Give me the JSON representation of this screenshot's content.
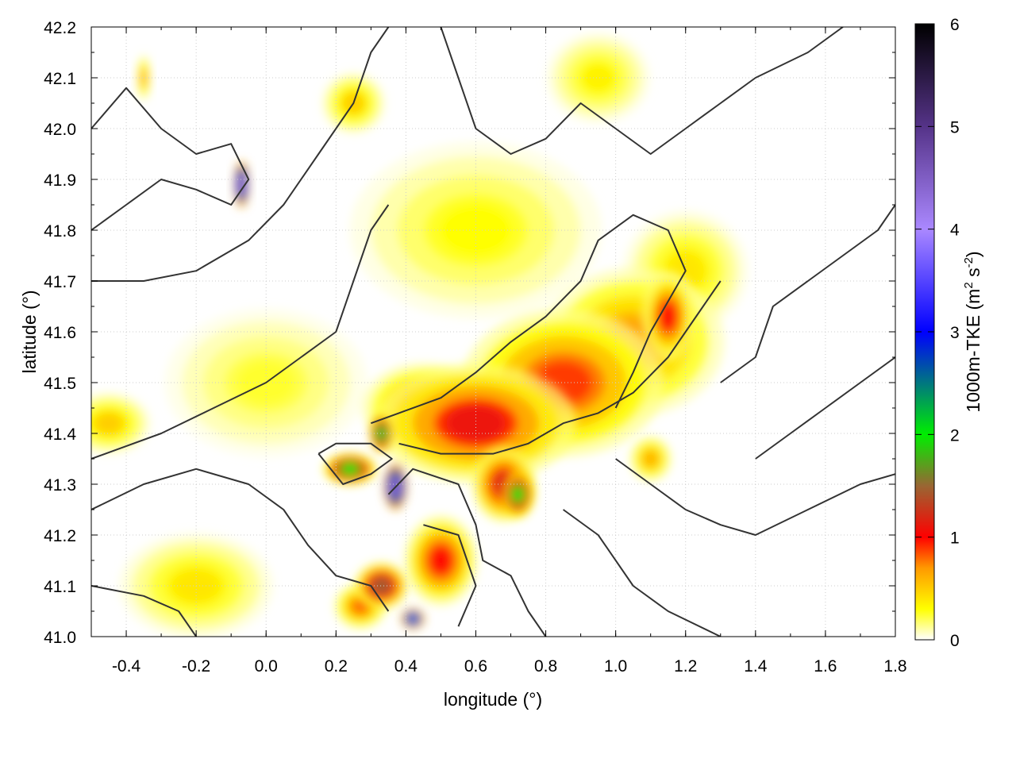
{
  "chart_data": {
    "type": "heatmap",
    "title": "",
    "xlabel": "longitude (°)",
    "ylabel": "latitude (°)",
    "xlim": [
      -0.5,
      1.8
    ],
    "ylim": [
      41.0,
      42.2
    ],
    "xticks": [
      -0.4,
      -0.2,
      0.0,
      0.2,
      0.4,
      0.6,
      0.8,
      1.0,
      1.2,
      1.4,
      1.6,
      1.8
    ],
    "xtick_labels": [
      "-0.4",
      "-0.2",
      "0.0",
      "0.2",
      "0.4",
      "0.6",
      "0.8",
      "1.0",
      "1.2",
      "1.4",
      "1.6",
      "1.8"
    ],
    "yticks": [
      41.0,
      41.1,
      41.2,
      41.3,
      41.4,
      41.5,
      41.6,
      41.7,
      41.8,
      41.9,
      42.0,
      42.1,
      42.2
    ],
    "ytick_labels": [
      "41.0",
      "41.1",
      "41.2",
      "41.3",
      "41.4",
      "41.5",
      "41.6",
      "41.7",
      "41.8",
      "41.9",
      "42.0",
      "42.1",
      "42.2"
    ],
    "grid": true,
    "colorbar": {
      "label": "1000m-TKE (m",
      "label_sup1": "2",
      "label_mid": " s",
      "label_sup2": "-2",
      "label_end": ")",
      "range": [
        0,
        6
      ],
      "ticks": [
        0,
        1,
        2,
        3,
        4,
        5,
        6
      ],
      "tick_labels": [
        "0",
        "1",
        "2",
        "3",
        "4",
        "5",
        "6"
      ],
      "stops": [
        {
          "v": 0,
          "color": "#ffffff"
        },
        {
          "v": 0.3,
          "color": "#ffff00"
        },
        {
          "v": 0.7,
          "color": "#ff9900"
        },
        {
          "v": 1.0,
          "color": "#ff0000"
        },
        {
          "v": 1.5,
          "color": "#996633"
        },
        {
          "v": 2.0,
          "color": "#00ee00"
        },
        {
          "v": 3.0,
          "color": "#0000ff"
        },
        {
          "v": 4.0,
          "color": "#aa88ff"
        },
        {
          "v": 5.0,
          "color": "#553388"
        },
        {
          "v": 6.0,
          "color": "#000000"
        }
      ]
    },
    "hotspots": [
      {
        "lon": 0.6,
        "lat": 41.42,
        "tke": 1.1,
        "rx": 0.2,
        "ry": 0.08
      },
      {
        "lon": 0.85,
        "lat": 41.5,
        "tke": 0.9,
        "rx": 0.2,
        "ry": 0.1
      },
      {
        "lon": 1.05,
        "lat": 41.58,
        "tke": 0.7,
        "rx": 0.18,
        "ry": 0.1
      },
      {
        "lon": 1.15,
        "lat": 41.63,
        "tke": 1.0,
        "rx": 0.05,
        "ry": 0.06
      },
      {
        "lon": 1.2,
        "lat": 41.72,
        "tke": 0.4,
        "rx": 0.12,
        "ry": 0.08
      },
      {
        "lon": 0.45,
        "lat": 41.45,
        "tke": 0.8,
        "rx": 0.12,
        "ry": 0.06
      },
      {
        "lon": 0.33,
        "lat": 41.4,
        "tke": 2.2,
        "rx": 0.02,
        "ry": 0.025
      },
      {
        "lon": 0.24,
        "lat": 41.33,
        "tke": 2.0,
        "rx": 0.05,
        "ry": 0.02
      },
      {
        "lon": 0.37,
        "lat": 41.295,
        "tke": 4.5,
        "rx": 0.02,
        "ry": 0.03
      },
      {
        "lon": 0.72,
        "lat": 41.28,
        "tke": 2.0,
        "rx": 0.03,
        "ry": 0.03
      },
      {
        "lon": 0.68,
        "lat": 41.3,
        "tke": 1.2,
        "rx": 0.06,
        "ry": 0.05
      },
      {
        "lon": 0.5,
        "lat": 41.15,
        "tke": 1.0,
        "rx": 0.07,
        "ry": 0.06
      },
      {
        "lon": 0.33,
        "lat": 41.1,
        "tke": 1.5,
        "rx": 0.05,
        "ry": 0.03
      },
      {
        "lon": 0.42,
        "lat": 41.035,
        "tke": 3.5,
        "rx": 0.02,
        "ry": 0.012
      },
      {
        "lon": 0.27,
        "lat": 41.06,
        "tke": 0.8,
        "rx": 0.05,
        "ry": 0.03
      },
      {
        "lon": -0.07,
        "lat": 41.89,
        "tke": 4.5,
        "rx": 0.012,
        "ry": 0.03
      },
      {
        "lon": -0.45,
        "lat": 41.42,
        "tke": 0.5,
        "rx": 0.08,
        "ry": 0.04
      },
      {
        "lon": -0.2,
        "lat": 41.1,
        "tke": 0.4,
        "rx": 0.15,
        "ry": 0.07
      },
      {
        "lon": 0.25,
        "lat": 42.05,
        "tke": 0.5,
        "rx": 0.06,
        "ry": 0.04
      },
      {
        "lon": 0.95,
        "lat": 42.1,
        "tke": 0.35,
        "rx": 0.1,
        "ry": 0.06
      },
      {
        "lon": 0.6,
        "lat": 41.8,
        "tke": 0.3,
        "rx": 0.25,
        "ry": 0.12
      },
      {
        "lon": 0.0,
        "lat": 41.5,
        "tke": 0.25,
        "rx": 0.2,
        "ry": 0.1
      },
      {
        "lon": -0.35,
        "lat": 42.1,
        "tke": 0.6,
        "rx": 0.01,
        "ry": 0.03
      },
      {
        "lon": 1.1,
        "lat": 41.35,
        "tke": 0.6,
        "rx": 0.04,
        "ry": 0.03
      }
    ],
    "contours": [
      [
        [
          0.3,
          41.42
        ],
        [
          0.38,
          41.44
        ],
        [
          0.5,
          41.47
        ],
        [
          0.6,
          41.52
        ],
        [
          0.7,
          41.58
        ],
        [
          0.8,
          41.63
        ],
        [
          0.9,
          41.7
        ],
        [
          0.95,
          41.78
        ],
        [
          1.05,
          41.83
        ],
        [
          1.15,
          41.8
        ],
        [
          1.2,
          41.72
        ],
        [
          1.1,
          41.6
        ],
        [
          1.05,
          41.52
        ],
        [
          1.0,
          41.45
        ]
      ],
      [
        [
          0.38,
          41.38
        ],
        [
          0.5,
          41.36
        ],
        [
          0.65,
          41.36
        ],
        [
          0.75,
          41.38
        ],
        [
          0.85,
          41.42
        ],
        [
          0.95,
          41.44
        ],
        [
          1.05,
          41.48
        ],
        [
          1.15,
          41.55
        ],
        [
          1.25,
          41.65
        ],
        [
          1.3,
          41.7
        ]
      ],
      [
        [
          0.15,
          41.36
        ],
        [
          0.22,
          41.3
        ],
        [
          0.3,
          41.32
        ],
        [
          0.36,
          41.35
        ],
        [
          0.3,
          41.38
        ],
        [
          0.2,
          41.38
        ],
        [
          0.15,
          41.36
        ]
      ],
      [
        [
          0.35,
          41.28
        ],
        [
          0.42,
          41.33
        ],
        [
          0.55,
          41.3
        ],
        [
          0.6,
          41.22
        ],
        [
          0.62,
          41.15
        ],
        [
          0.7,
          41.12
        ],
        [
          0.75,
          41.05
        ],
        [
          0.8,
          41.0
        ]
      ],
      [
        [
          0.45,
          41.22
        ],
        [
          0.55,
          41.2
        ],
        [
          0.6,
          41.1
        ],
        [
          0.55,
          41.02
        ]
      ],
      [
        [
          -0.5,
          41.35
        ],
        [
          -0.3,
          41.4
        ],
        [
          -0.15,
          41.45
        ],
        [
          0.0,
          41.5
        ],
        [
          0.1,
          41.55
        ],
        [
          0.2,
          41.6
        ],
        [
          0.25,
          41.7
        ],
        [
          0.3,
          41.8
        ],
        [
          0.35,
          41.85
        ]
      ],
      [
        [
          -0.5,
          41.25
        ],
        [
          -0.35,
          41.3
        ],
        [
          -0.2,
          41.33
        ],
        [
          -0.05,
          41.3
        ],
        [
          0.05,
          41.25
        ],
        [
          0.12,
          41.18
        ],
        [
          0.2,
          41.12
        ],
        [
          0.3,
          41.1
        ],
        [
          0.35,
          41.05
        ]
      ],
      [
        [
          -0.5,
          41.1
        ],
        [
          -0.35,
          41.08
        ],
        [
          -0.25,
          41.05
        ],
        [
          -0.2,
          41.0
        ]
      ],
      [
        [
          -0.5,
          42.0
        ],
        [
          -0.4,
          42.08
        ],
        [
          -0.3,
          42.0
        ],
        [
          -0.2,
          41.95
        ],
        [
          -0.1,
          41.97
        ],
        [
          -0.05,
          41.9
        ],
        [
          -0.1,
          41.85
        ],
        [
          -0.2,
          41.88
        ],
        [
          -0.3,
          41.9
        ],
        [
          -0.4,
          41.85
        ],
        [
          -0.5,
          41.8
        ]
      ],
      [
        [
          -0.5,
          41.7
        ],
        [
          -0.35,
          41.7
        ],
        [
          -0.2,
          41.72
        ],
        [
          -0.05,
          41.78
        ],
        [
          0.05,
          41.85
        ],
        [
          0.15,
          41.95
        ],
        [
          0.25,
          42.05
        ],
        [
          0.3,
          42.15
        ],
        [
          0.35,
          42.2
        ]
      ],
      [
        [
          0.5,
          42.2
        ],
        [
          0.55,
          42.1
        ],
        [
          0.6,
          42.0
        ],
        [
          0.7,
          41.95
        ],
        [
          0.8,
          41.98
        ],
        [
          0.9,
          42.05
        ],
        [
          1.0,
          42.0
        ],
        [
          1.1,
          41.95
        ],
        [
          1.2,
          42.0
        ],
        [
          1.3,
          42.05
        ],
        [
          1.4,
          42.1
        ],
        [
          1.55,
          42.15
        ],
        [
          1.65,
          42.2
        ]
      ],
      [
        [
          1.0,
          41.35
        ],
        [
          1.1,
          41.3
        ],
        [
          1.2,
          41.25
        ],
        [
          1.3,
          41.22
        ],
        [
          1.4,
          41.2
        ],
        [
          1.55,
          41.25
        ],
        [
          1.7,
          41.3
        ],
        [
          1.8,
          41.32
        ]
      ],
      [
        [
          0.85,
          41.25
        ],
        [
          0.95,
          41.2
        ],
        [
          1.05,
          41.1
        ],
        [
          1.15,
          41.05
        ],
        [
          1.3,
          41.0
        ]
      ],
      [
        [
          1.3,
          41.5
        ],
        [
          1.4,
          41.55
        ],
        [
          1.45,
          41.65
        ],
        [
          1.55,
          41.7
        ],
        [
          1.65,
          41.75
        ],
        [
          1.75,
          41.8
        ],
        [
          1.8,
          41.85
        ]
      ],
      [
        [
          1.4,
          41.35
        ],
        [
          1.5,
          41.4
        ],
        [
          1.6,
          41.45
        ],
        [
          1.7,
          41.5
        ],
        [
          1.8,
          41.55
        ]
      ]
    ]
  }
}
